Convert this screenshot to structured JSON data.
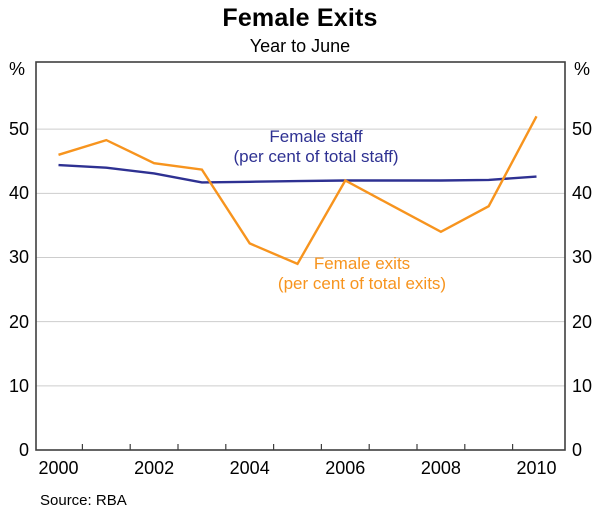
{
  "header": {
    "title": "Female Exits",
    "subtitle": "Year to June"
  },
  "axes": {
    "unit_left": "%",
    "unit_right": "%",
    "y_ticks": [
      50,
      40,
      30,
      20,
      10,
      0
    ],
    "y_gridlines": [
      10,
      20,
      30,
      40,
      50
    ],
    "x_ticks": [
      2000,
      2002,
      2004,
      2006,
      2008,
      2010
    ],
    "ylim": [
      0,
      60
    ],
    "xlim": [
      2000,
      2010
    ]
  },
  "labels": {
    "staff_line1": "Female staff",
    "staff_line2": "(per cent of total staff)",
    "exits_line1": "Female exits",
    "exits_line2": "(per cent of total exits)"
  },
  "source": "Source: RBA",
  "colors": {
    "staff": "#2e3192",
    "exits": "#f7941e",
    "grid": "#cdcdcd",
    "frame": "#3f3f3f",
    "text": "#000000"
  },
  "chart_data": {
    "type": "line",
    "title": "Female Exits",
    "subtitle": "Year to June",
    "x": [
      2000,
      2001,
      2002,
      2003,
      2004,
      2005,
      2006,
      2007,
      2008,
      2009,
      2010
    ],
    "series": [
      {
        "name": "Female staff (per cent of total staff)",
        "color": "#2e3192",
        "values": [
          44.4,
          44.0,
          43.1,
          41.7,
          41.8,
          41.9,
          42.0,
          42.0,
          42.0,
          42.1,
          42.6
        ]
      },
      {
        "name": "Female exits (per cent of total exits)",
        "color": "#f7941e",
        "values": [
          46.0,
          48.3,
          44.7,
          43.7,
          32.2,
          29.0,
          42.0,
          38.0,
          34.0,
          38.0,
          52.0
        ]
      }
    ],
    "ylim": [
      0,
      60
    ],
    "y_tick_step": 10,
    "x_tick_labels": [
      2000,
      2002,
      2004,
      2006,
      2008,
      2010
    ],
    "unit": "%",
    "grid": "horizontal",
    "legend": "inline-annotations",
    "source": "Source: RBA"
  }
}
